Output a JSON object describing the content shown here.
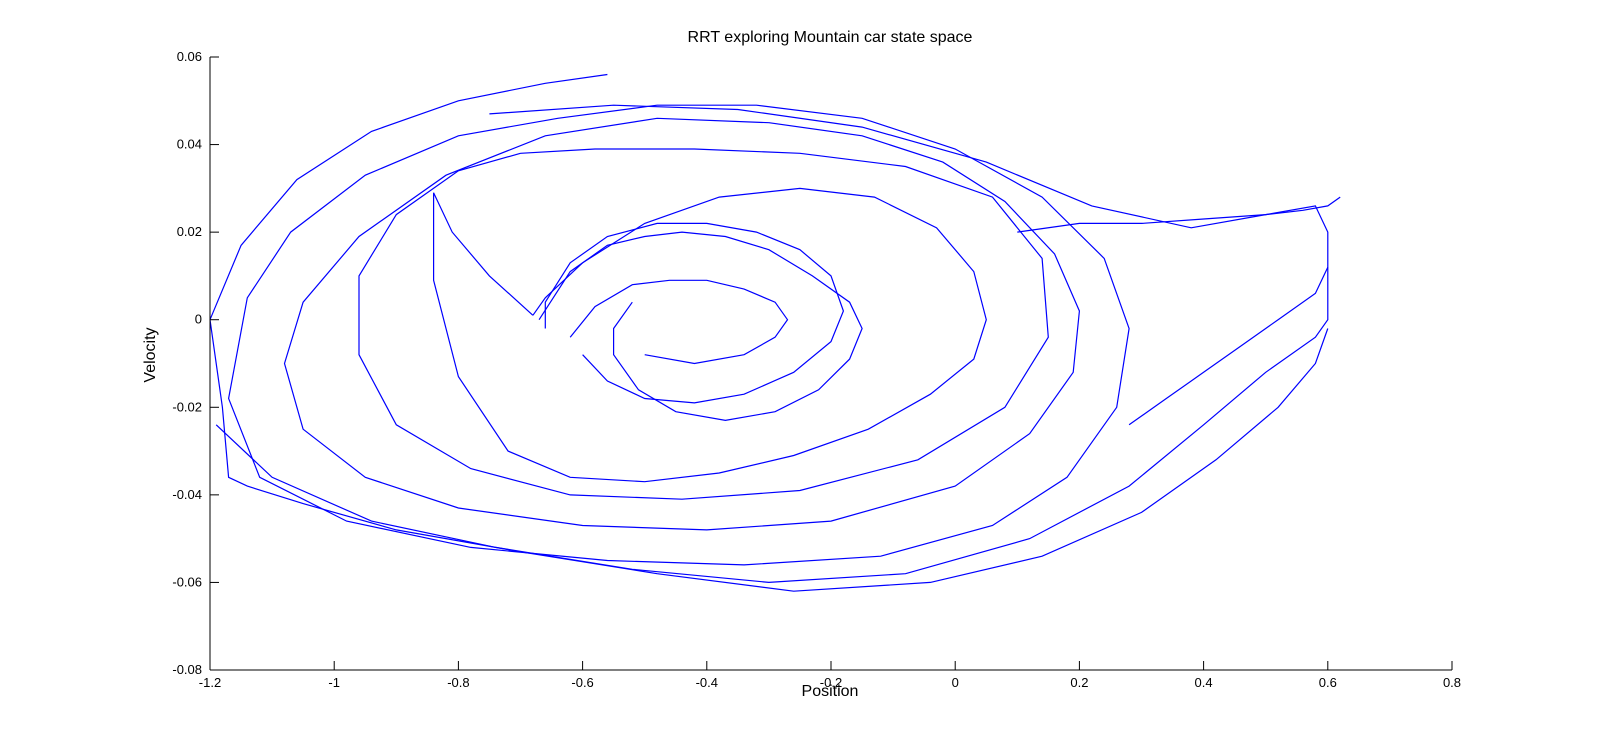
{
  "chart_data": {
    "type": "line",
    "title": "RRT exploring Mountain car state space",
    "xlabel": "Position",
    "ylabel": "Velocity",
    "xlim": [
      -1.2,
      0.8
    ],
    "ylim": [
      -0.08,
      0.06
    ],
    "xticks": [
      "-1.2",
      "-1",
      "-0.8",
      "-0.6",
      "-0.4",
      "-0.2",
      "0",
      "0.2",
      "0.4",
      "0.6",
      "0.8"
    ],
    "yticks": [
      "-0.08",
      "-0.06",
      "-0.04",
      "-0.02",
      "0",
      "0.02",
      "0.04",
      "0.06"
    ],
    "grid": false,
    "line_color": "#0000ff",
    "series": [
      {
        "x": [
          -0.67,
          -0.62,
          -0.56,
          -0.5,
          -0.44,
          -0.37,
          -0.3,
          -0.23,
          -0.17,
          -0.15,
          -0.17,
          -0.22,
          -0.29,
          -0.37,
          -0.45,
          -0.51,
          -0.55,
          -0.55,
          -0.52
        ],
        "y": [
          0.0,
          0.011,
          0.017,
          0.019,
          0.02,
          0.019,
          0.016,
          0.01,
          0.004,
          -0.002,
          -0.009,
          -0.016,
          -0.021,
          -0.023,
          -0.021,
          -0.016,
          -0.008,
          -0.002,
          0.004
        ]
      },
      {
        "x": [
          -0.62,
          -0.58,
          -0.52,
          -0.46,
          -0.4,
          -0.34,
          -0.29,
          -0.27,
          -0.29,
          -0.34,
          -0.42,
          -0.5
        ],
        "y": [
          -0.004,
          0.003,
          0.008,
          0.009,
          0.009,
          0.007,
          0.004,
          0.0,
          -0.004,
          -0.008,
          -0.01,
          -0.008
        ]
      },
      {
        "x": [
          -0.66,
          -0.66,
          -0.62,
          -0.56,
          -0.48,
          -0.4,
          -0.32,
          -0.25,
          -0.2,
          -0.18,
          -0.2,
          -0.26,
          -0.34,
          -0.42,
          -0.5,
          -0.56,
          -0.6
        ],
        "y": [
          -0.002,
          0.004,
          0.013,
          0.019,
          0.022,
          0.022,
          0.02,
          0.016,
          0.01,
          0.002,
          -0.005,
          -0.012,
          -0.017,
          -0.019,
          -0.018,
          -0.014,
          -0.008
        ]
      },
      {
        "x": [
          -0.68,
          -0.75,
          -0.81,
          -0.84,
          -0.84,
          -0.8,
          -0.72,
          -0.62,
          -0.5,
          -0.38,
          -0.26,
          -0.14,
          -0.04,
          0.03,
          0.05,
          0.03,
          -0.03,
          -0.13,
          -0.25,
          -0.38,
          -0.5,
          -0.6,
          -0.66,
          -0.68
        ],
        "y": [
          0.001,
          0.01,
          0.02,
          0.029,
          0.009,
          -0.013,
          -0.03,
          -0.036,
          -0.037,
          -0.035,
          -0.031,
          -0.025,
          -0.017,
          -0.009,
          0.0,
          0.011,
          0.021,
          0.028,
          0.03,
          0.028,
          0.022,
          0.013,
          0.005,
          0.001
        ]
      },
      {
        "x": [
          -0.7,
          -0.8,
          -0.9,
          -0.96,
          -0.96,
          -0.9,
          -0.78,
          -0.62,
          -0.44,
          -0.25,
          -0.06,
          0.08,
          0.15,
          0.14,
          0.06,
          -0.08,
          -0.25,
          -0.42,
          -0.58,
          -0.7
        ],
        "y": [
          0.038,
          0.034,
          0.024,
          0.01,
          -0.008,
          -0.024,
          -0.034,
          -0.04,
          -0.041,
          -0.039,
          -0.032,
          -0.02,
          -0.004,
          0.014,
          0.028,
          0.035,
          0.038,
          0.039,
          0.039,
          0.038
        ]
      },
      {
        "x": [
          -0.3,
          -0.48,
          -0.66,
          -0.82,
          -0.96,
          -1.05,
          -1.08,
          -1.05,
          -0.95,
          -0.8,
          -0.6,
          -0.4,
          -0.2,
          0.0,
          0.12,
          0.19,
          0.2,
          0.16,
          0.08,
          -0.02,
          -0.15,
          -0.3
        ],
        "y": [
          0.045,
          0.046,
          0.042,
          0.033,
          0.019,
          0.004,
          -0.01,
          -0.025,
          -0.036,
          -0.043,
          -0.047,
          -0.048,
          -0.046,
          -0.038,
          -0.026,
          -0.012,
          0.002,
          0.015,
          0.027,
          0.036,
          0.042,
          0.045
        ]
      },
      {
        "x": [
          -0.64,
          -0.8,
          -0.95,
          -1.07,
          -1.14,
          -1.17,
          -1.12,
          -0.98,
          -0.78,
          -0.56,
          -0.34,
          -0.12,
          0.06,
          0.18,
          0.26,
          0.28,
          0.24,
          0.14,
          0.0,
          -0.15,
          -0.32,
          -0.48,
          -0.64
        ],
        "y": [
          0.046,
          0.042,
          0.033,
          0.02,
          0.005,
          -0.018,
          -0.036,
          -0.046,
          -0.052,
          -0.055,
          -0.056,
          -0.054,
          -0.047,
          -0.036,
          -0.02,
          -0.002,
          0.014,
          0.028,
          0.039,
          0.046,
          0.049,
          0.049,
          0.046
        ]
      },
      {
        "x": [
          -1.2,
          -1.15,
          -1.06,
          -0.94,
          -0.8,
          -0.66,
          -0.56
        ],
        "y": [
          0.0,
          0.017,
          0.032,
          0.043,
          0.05,
          0.054,
          0.056
        ]
      },
      {
        "x": [
          -1.19,
          -1.1,
          -0.94,
          -0.74,
          -0.52,
          -0.3,
          -0.08,
          0.12,
          0.28,
          0.4,
          0.5,
          0.58,
          0.6,
          0.6,
          0.58,
          0.5,
          0.38,
          0.22,
          0.05,
          -0.15,
          -0.35,
          -0.55,
          -0.75
        ],
        "y": [
          -0.024,
          -0.036,
          -0.046,
          -0.052,
          -0.057,
          -0.06,
          -0.058,
          -0.05,
          -0.038,
          -0.024,
          -0.012,
          -0.004,
          0.0,
          0.02,
          0.026,
          0.024,
          0.021,
          0.026,
          0.036,
          0.044,
          0.048,
          0.049,
          0.047
        ]
      },
      {
        "x": [
          -1.2,
          -1.18,
          -1.17,
          -1.14,
          -1.05,
          -0.9,
          -0.7,
          -0.48,
          -0.26,
          -0.04,
          0.14,
          0.3,
          0.42,
          0.52,
          0.58,
          0.6
        ],
        "y": [
          0.0,
          -0.02,
          -0.036,
          -0.038,
          -0.042,
          -0.048,
          -0.053,
          -0.058,
          -0.062,
          -0.06,
          -0.054,
          -0.044,
          -0.032,
          -0.02,
          -0.01,
          -0.002
        ]
      },
      {
        "x": [
          0.1,
          0.2,
          0.3,
          0.4,
          0.5,
          0.56,
          0.6,
          0.62
        ],
        "y": [
          0.02,
          0.022,
          0.022,
          0.023,
          0.024,
          0.025,
          0.026,
          0.028
        ]
      },
      {
        "x": [
          0.28,
          0.34,
          0.4,
          0.46,
          0.52,
          0.58,
          0.6
        ],
        "y": [
          -0.024,
          -0.018,
          -0.012,
          -0.006,
          0.0,
          0.006,
          0.012
        ]
      }
    ]
  }
}
